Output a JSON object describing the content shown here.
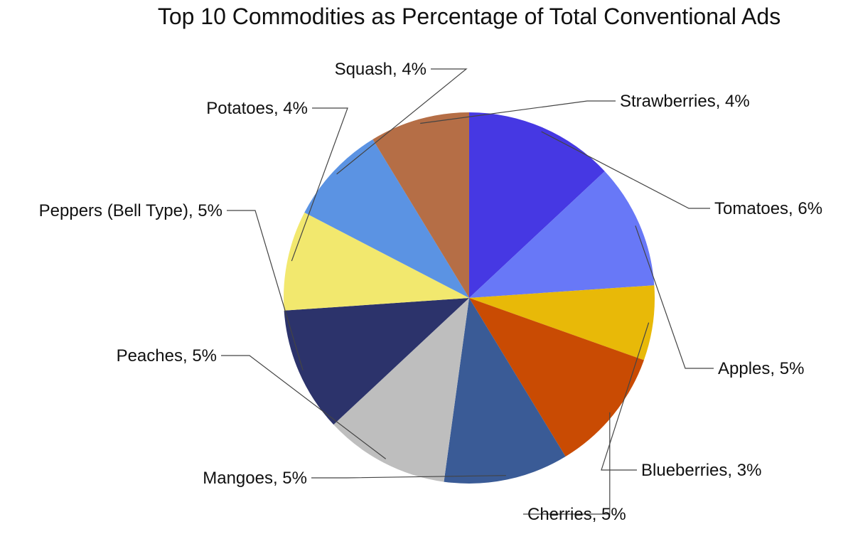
{
  "chart_data": {
    "type": "pie",
    "title": "Top 10 Commodities as Percentage of Total Conventional Ads",
    "slices": [
      {
        "label": "Tomatoes, 6%",
        "name": "Tomatoes",
        "value": 6,
        "color": "#4638E3"
      },
      {
        "label": "Apples, 5%",
        "name": "Apples",
        "value": 5,
        "color": "#6878F7"
      },
      {
        "label": "Blueberries, 3%",
        "name": "Blueberries",
        "value": 3,
        "color": "#E8B908"
      },
      {
        "label": "Cherries, 5%",
        "name": "Cherries",
        "value": 5,
        "color": "#C94B03"
      },
      {
        "label": "Mangoes, 5%",
        "name": "Mangoes",
        "value": 5,
        "color": "#3A5B96"
      },
      {
        "label": "Peaches, 5%",
        "name": "Peaches",
        "value": 5,
        "color": "#BEBEBE"
      },
      {
        "label": "Peppers (Bell Type), 5%",
        "name": "Peppers (Bell Type)",
        "value": 5,
        "color": "#2C336B"
      },
      {
        "label": "Potatoes, 4%",
        "name": "Potatoes",
        "value": 4,
        "color": "#F2E86E"
      },
      {
        "label": "Squash, 4%",
        "name": "Squash",
        "value": 4,
        "color": "#5B93E3"
      },
      {
        "label": "Strawberries, 4%",
        "name": "Strawberries",
        "value": 4,
        "color": "#B56E46"
      }
    ]
  }
}
